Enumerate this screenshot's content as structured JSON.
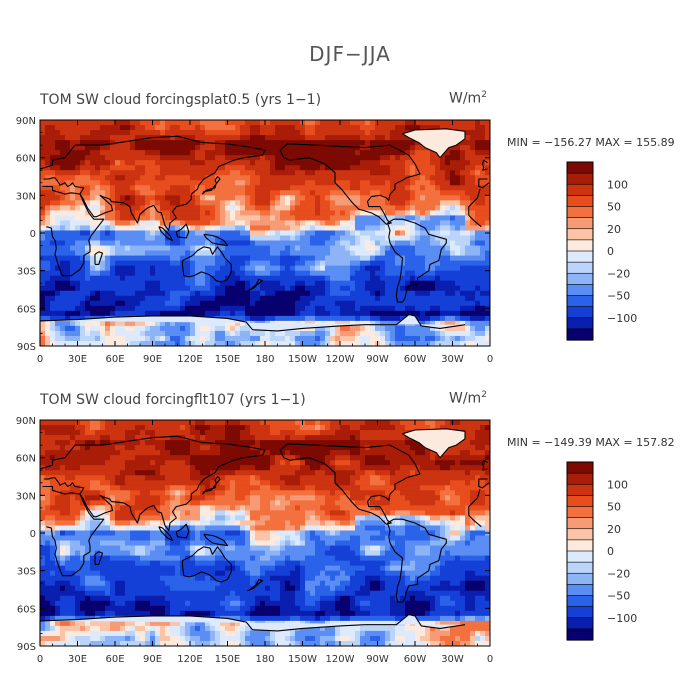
{
  "figure": {
    "title": "DJF−JJA"
  },
  "palette": [
    "#08006e",
    "#0a1fb0",
    "#1540d8",
    "#2a62ea",
    "#5b8ef4",
    "#8cb4f7",
    "#bad4fa",
    "#dde9fc",
    "#fdeade",
    "#fbc4a7",
    "#f79a76",
    "#f2713f",
    "#e84d1e",
    "#cc3310",
    "#a91d08",
    "#7d0a02"
  ],
  "colorbar": {
    "labels": [
      "100",
      "50",
      "20",
      "0",
      "−20",
      "−50",
      "−100"
    ],
    "levels": [
      -150,
      -120,
      -100,
      -70,
      -50,
      -30,
      -20,
      -10,
      0,
      10,
      20,
      30,
      50,
      70,
      100,
      120,
      150
    ]
  },
  "axes": {
    "x_ticks": [
      "0",
      "30E",
      "60E",
      "90E",
      "120E",
      "150E",
      "180",
      "150W",
      "120W",
      "90W",
      "60W",
      "30W",
      "0"
    ],
    "y_ticks": [
      "90N",
      "60N",
      "30N",
      "0",
      "30S",
      "60S",
      "90S"
    ]
  },
  "panels": [
    {
      "title": "TOM SW cloud forcingsplat0.5 (yrs 1−1)",
      "units": "W/m",
      "units_sup": "2",
      "stats": "MIN = −156.27  MAX = 155.89",
      "min": -156.27,
      "max": 155.89
    },
    {
      "title": "TOM SW cloud forcingflt107 (yrs 1−1)",
      "units": "W/m",
      "units_sup": "2",
      "stats": "MIN = −149.39  MAX = 157.82",
      "min": -149.39,
      "max": 157.82
    }
  ]
}
